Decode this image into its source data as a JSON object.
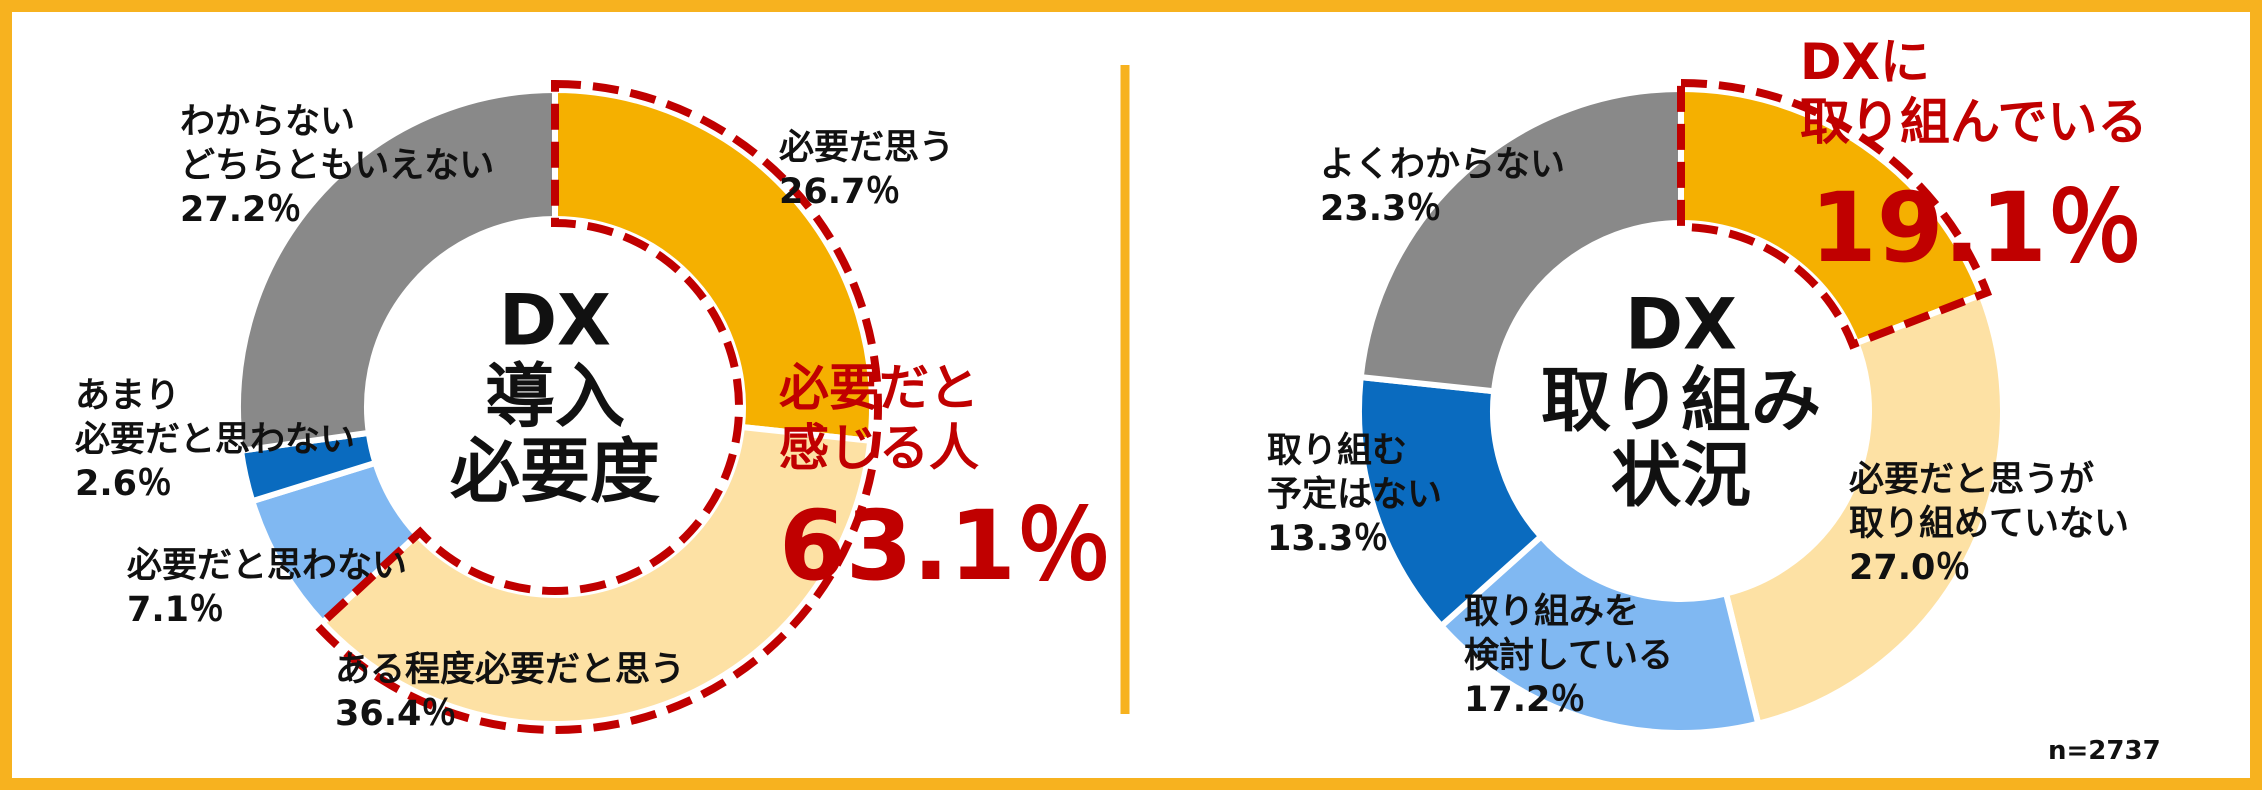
{
  "chart_data": [
    {
      "type": "donut",
      "center_label": "DX\n導入\n必要度",
      "categories": [
        "必要だ思う",
        "ある程度必要だと思う",
        "必要だと思わない",
        "あまり\n必要だと思わない",
        "わからない\nどちらともいえない"
      ],
      "values": [
        26.7,
        36.4,
        7.1,
        2.6,
        27.2
      ],
      "value_labels": [
        "26.7％",
        "36.4％",
        "7.1％",
        "2.6％",
        "27.2％"
      ],
      "colors": [
        "#f5b000",
        "#fde1a4",
        "#80b8f2",
        "#0a6bbf",
        "#898989"
      ],
      "highlight": {
        "label": "必要だと\n感じる人",
        "value_label": "63.1％",
        "slices": 2,
        "color": "#c00000"
      }
    },
    {
      "type": "donut",
      "center_label": "DX\n取り組み\n状況",
      "categories": [
        "DXに取り組んでいる",
        "必要だと思うが\n取り組めていない",
        "取り組みを\n検討している",
        "取り組む\n予定はない",
        "よくわからない"
      ],
      "values": [
        19.1,
        27.0,
        17.2,
        13.3,
        23.3
      ],
      "value_labels": [
        "19.1％",
        "27.0％",
        "17.2％",
        "13.3％",
        "23.3％"
      ],
      "colors": [
        "#f5b000",
        "#fde1a4",
        "#80b8f2",
        "#0a6bbf",
        "#898989"
      ],
      "highlight": {
        "label": "DXに\n取り組んでいる",
        "value_label": "19.1％",
        "slices": 1,
        "color": "#c00000"
      },
      "note": "n=2737"
    }
  ]
}
